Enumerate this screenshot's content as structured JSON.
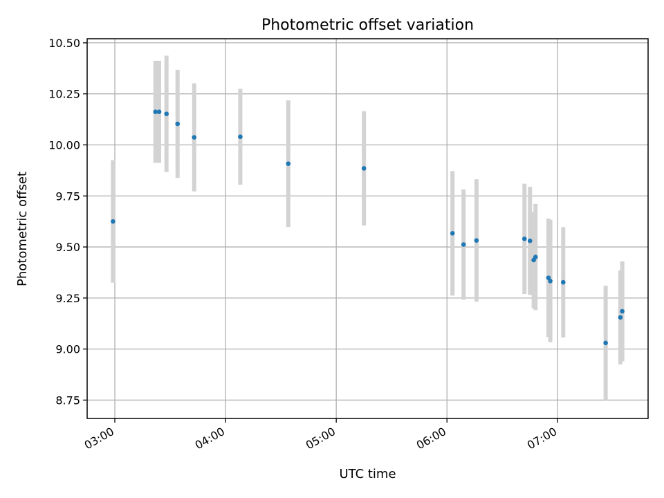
{
  "chart_data": {
    "type": "scatter",
    "title": "Photometric offset variation",
    "xlabel": "UTC time",
    "ylabel": "Photometric offset",
    "xlim": [
      "02:45",
      "07:49"
    ],
    "ylim": [
      8.66,
      10.52
    ],
    "grid": true,
    "x_ticks": [
      "03:00",
      "04:00",
      "05:00",
      "06:00",
      "07:00"
    ],
    "y_ticks": [
      "8.75",
      "9.00",
      "9.25",
      "9.50",
      "9.75",
      "10.00",
      "10.25",
      "10.50"
    ],
    "colors": {
      "point": "#1f77b4",
      "error_bar": "#d3d3d3",
      "grid": "#b0b0b0"
    },
    "series": [
      {
        "points": [
          {
            "x": "02:59",
            "y": 9.625,
            "err": 0.3
          },
          {
            "x": "03:22",
            "y": 10.162,
            "err": 0.25
          },
          {
            "x": "03:24",
            "y": 10.162,
            "err": 0.25
          },
          {
            "x": "03:28",
            "y": 10.152,
            "err": 0.285
          },
          {
            "x": "03:34",
            "y": 10.103,
            "err": 0.265
          },
          {
            "x": "03:43",
            "y": 10.037,
            "err": 0.265
          },
          {
            "x": "04:08",
            "y": 10.04,
            "err": 0.235
          },
          {
            "x": "04:34",
            "y": 9.908,
            "err": 0.31
          },
          {
            "x": "05:15",
            "y": 9.885,
            "err": 0.28
          },
          {
            "x": "06:03",
            "y": 9.567,
            "err": 0.305
          },
          {
            "x": "06:09",
            "y": 9.512,
            "err": 0.27
          },
          {
            "x": "06:16",
            "y": 9.532,
            "err": 0.3
          },
          {
            "x": "06:42",
            "y": 9.54,
            "err": 0.27
          },
          {
            "x": "06:45",
            "y": 9.53,
            "err": 0.265
          },
          {
            "x": "06:47",
            "y": 9.436,
            "err": 0.235
          },
          {
            "x": "06:48",
            "y": 9.451,
            "err": 0.26
          },
          {
            "x": "06:55",
            "y": 9.349,
            "err": 0.29
          },
          {
            "x": "06:56",
            "y": 9.333,
            "err": 0.3
          },
          {
            "x": "07:03",
            "y": 9.327,
            "err": 0.27
          },
          {
            "x": "07:26",
            "y": 9.03,
            "err": 0.28
          },
          {
            "x": "07:34",
            "y": 9.155,
            "err": 0.23
          },
          {
            "x": "07:35",
            "y": 9.185,
            "err": 0.245
          }
        ]
      }
    ]
  }
}
